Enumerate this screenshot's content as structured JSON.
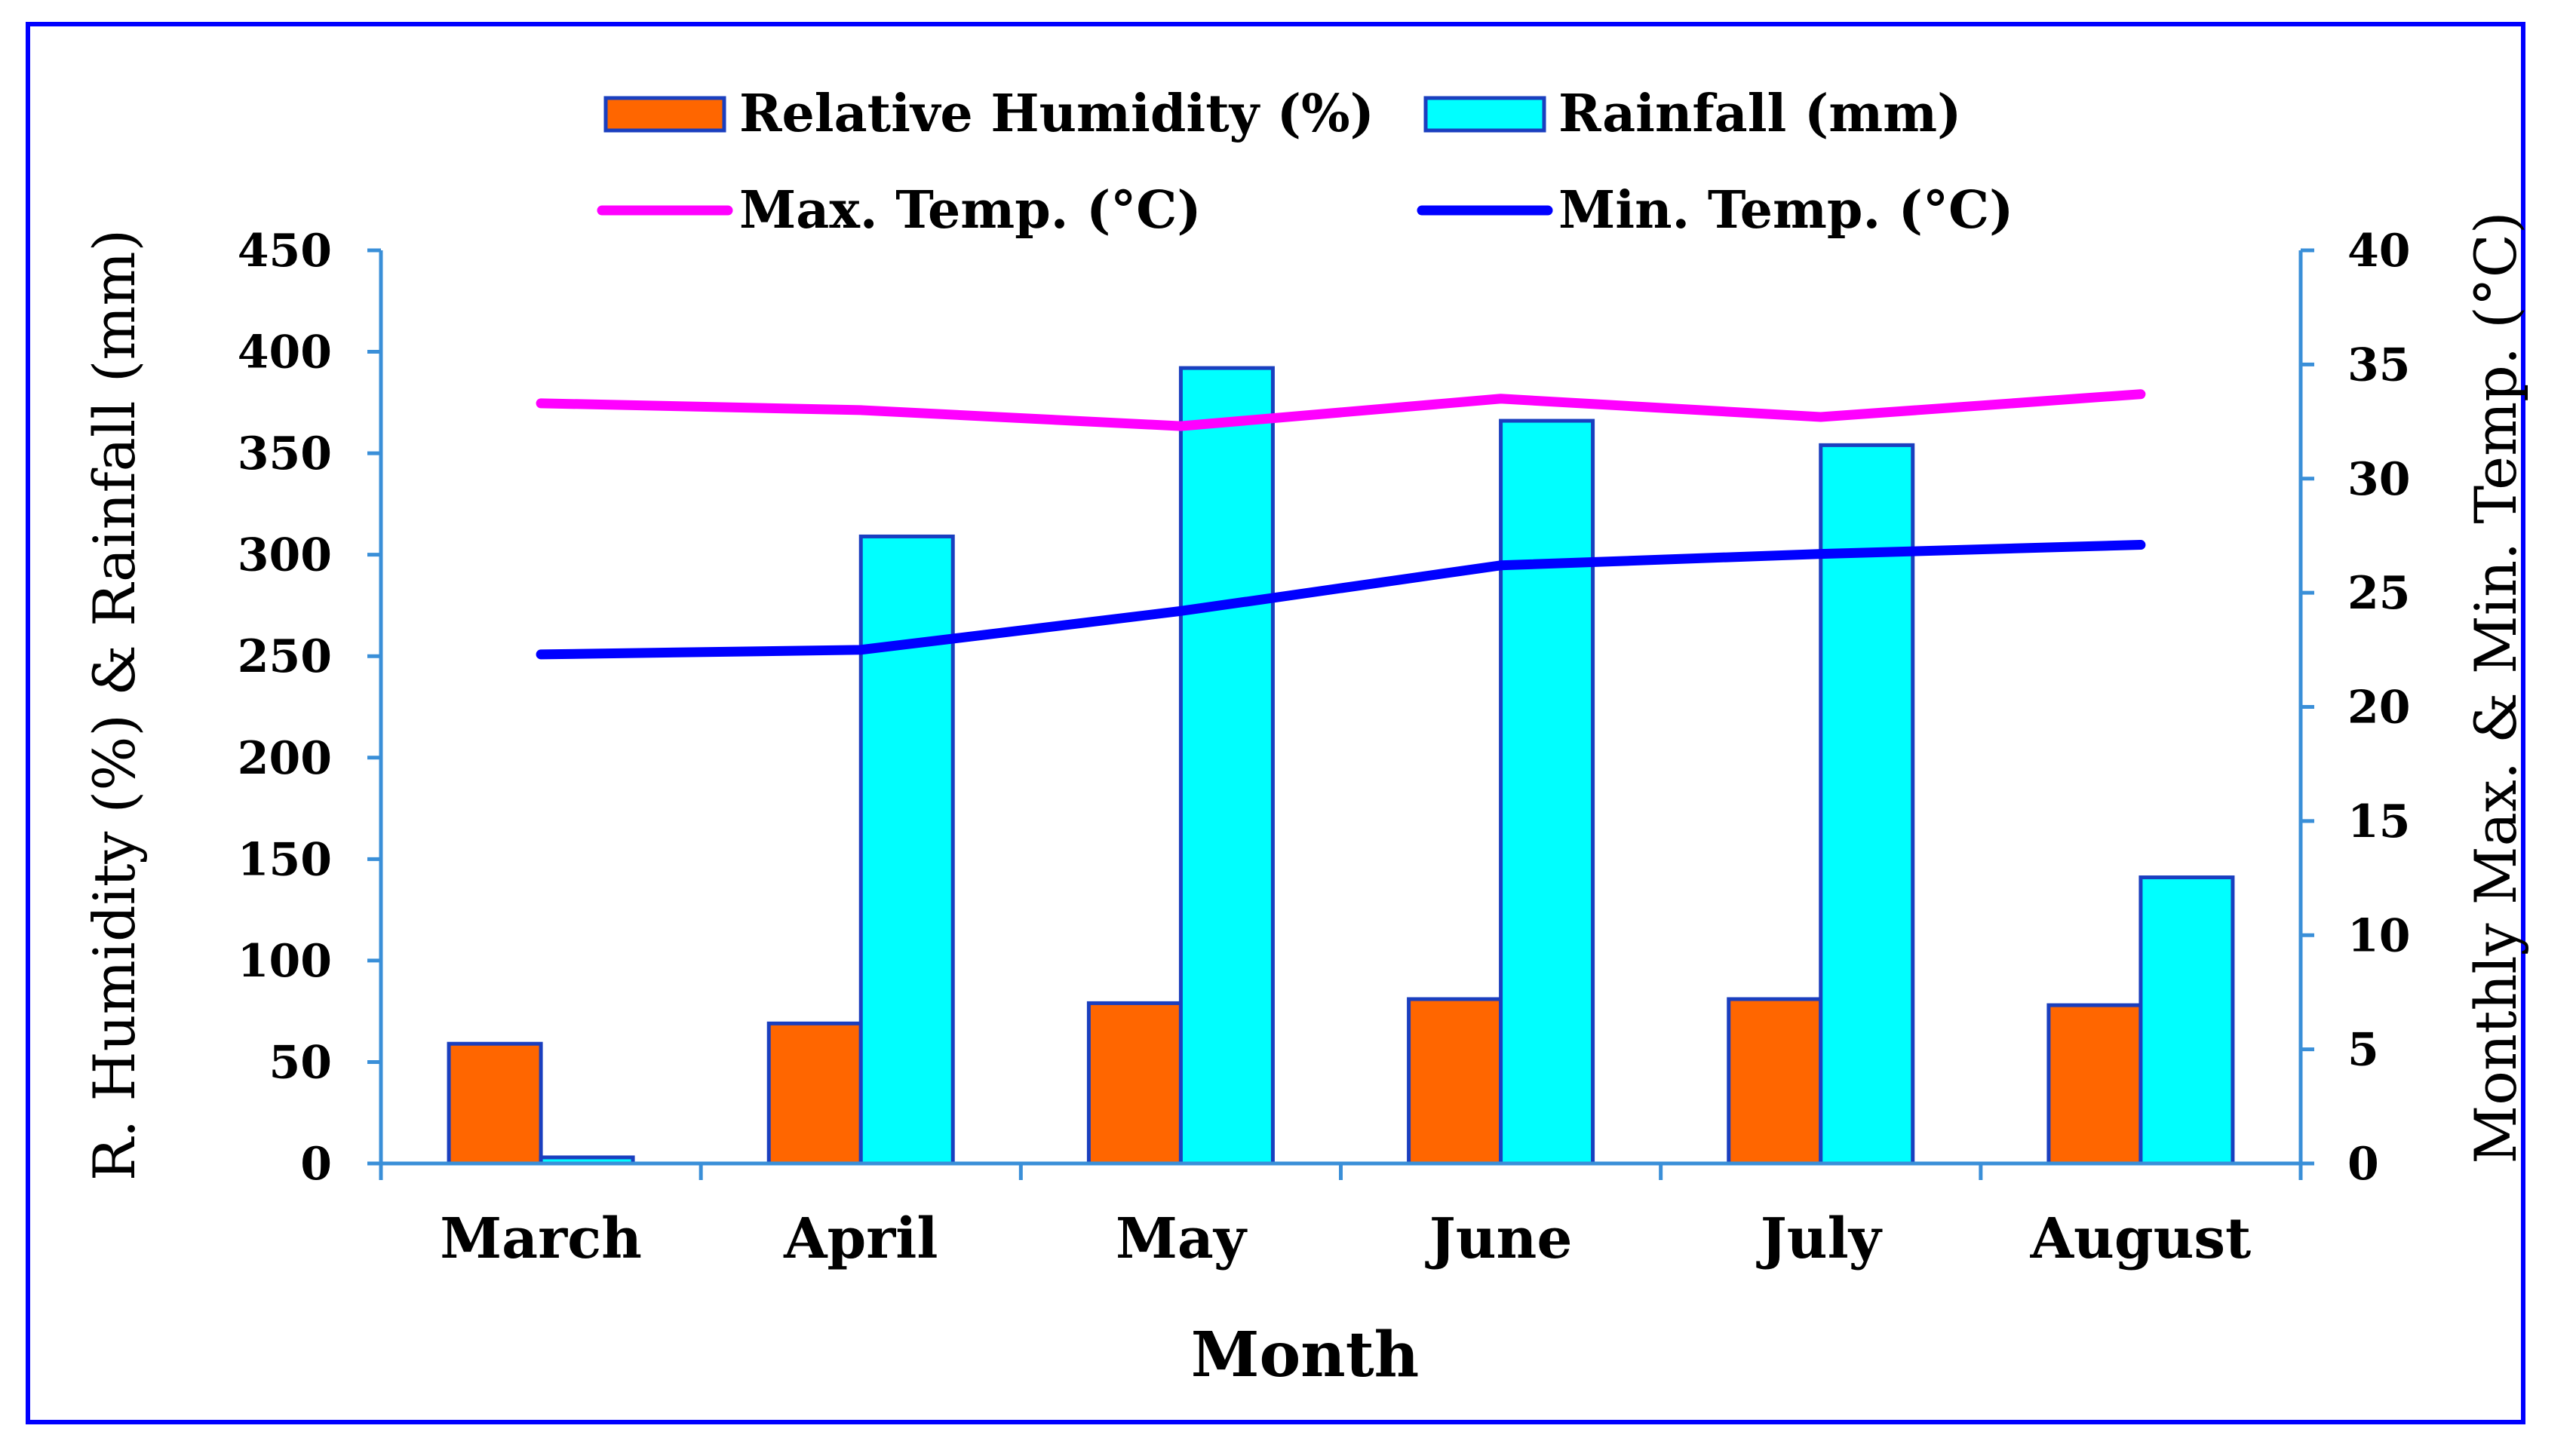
{
  "chart_data": {
    "type": "bar",
    "categories": [
      "March",
      "April",
      "May",
      "June",
      "July",
      "August"
    ],
    "series": [
      {
        "name": "Relative Humidity (%)",
        "kind": "bar",
        "axis": "left",
        "color": "#ff6600",
        "values": [
          59,
          69,
          79,
          81,
          81,
          78
        ]
      },
      {
        "name": "Rainfall (mm)",
        "kind": "bar",
        "axis": "left",
        "color": "#00ffff",
        "values": [
          3,
          309,
          392,
          366,
          354,
          141
        ]
      },
      {
        "name": "Max. Temp. (°C)",
        "kind": "line",
        "axis": "right",
        "color": "#ff00ff",
        "values": [
          33.3,
          33.0,
          32.3,
          33.5,
          32.7,
          33.7
        ]
      },
      {
        "name": "Min. Temp. (°C)",
        "kind": "line",
        "axis": "right",
        "color": "#0000ff",
        "values": [
          22.3,
          22.5,
          24.2,
          26.2,
          26.7,
          27.1
        ]
      }
    ],
    "xlabel": "Month",
    "ylabel": "R. Humidity (%) & Rainfall (mm)",
    "y2label": "Monthly Max. & Min. Temp. (°C)",
    "ylim": [
      0,
      450
    ],
    "y_ticks": [
      "0",
      "50",
      "100",
      "150",
      "200",
      "250",
      "300",
      "350",
      "400",
      "450"
    ],
    "y2lim": [
      0,
      40
    ],
    "y2_ticks": [
      "0",
      "5",
      "10",
      "15",
      "20",
      "25",
      "30",
      "35",
      "40"
    ],
    "legend_position": "top",
    "grid": false,
    "bar_edge_color": "#1a3fbf",
    "axis_color": "#3a8fd8",
    "frame_color": "#0000ff"
  }
}
